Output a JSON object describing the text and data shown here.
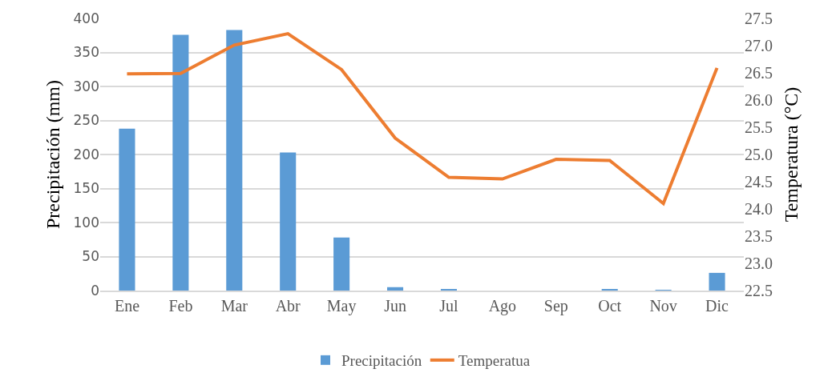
{
  "chart_data": {
    "type": "bar",
    "categories": [
      "Ene",
      "Feb",
      "Mar",
      "Abr",
      "May",
      "Jun",
      "Jul",
      "Ago",
      "Sep",
      "Oct",
      "Nov",
      "Dic"
    ],
    "series": [
      {
        "name": "Precipitación",
        "color": "#5b9bd5",
        "values": [
          238,
          376,
          383,
          203,
          78,
          5,
          2,
          0,
          0,
          2,
          1,
          26
        ]
      },
      {
        "name": "Temperatua",
        "type": "line",
        "axis": "y2",
        "color": "#ed7d31",
        "values": [
          26.48,
          26.49,
          27.01,
          27.22,
          26.56,
          25.3,
          24.58,
          24.55,
          24.91,
          24.89,
          24.1,
          26.59
        ]
      }
    ],
    "ylabel": "Precipitación (mm)",
    "y2label": "Temperatura (°C)",
    "ylim": [
      0,
      400
    ],
    "yticks": [
      0,
      50,
      100,
      150,
      200,
      250,
      300,
      350,
      400
    ],
    "y2lim": [
      22.5,
      27.5
    ],
    "y2ticks": [
      22.5,
      {
        "value": 23,
        "label": "23.0"
      },
      23.5,
      {
        "value": 24,
        "label": "24.0"
      },
      24.5,
      {
        "value": 25,
        "label": "25.0"
      },
      25.5,
      {
        "value": 26,
        "label": "26.0"
      },
      26.5,
      {
        "value": 27,
        "label": "27.0"
      },
      27.5
    ],
    "grid": "y",
    "legend": "bottom",
    "marker": "none",
    "line_style": "solid"
  }
}
